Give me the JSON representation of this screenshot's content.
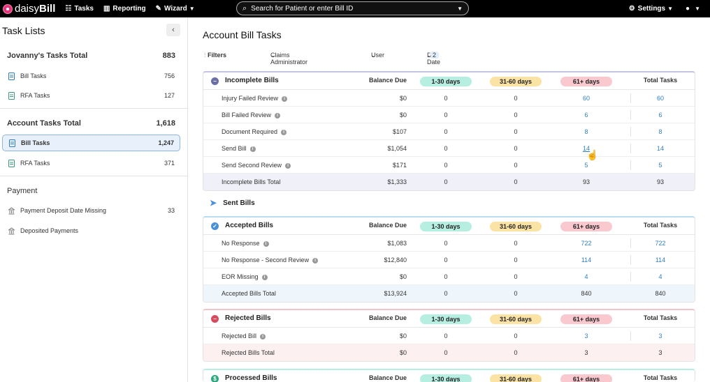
{
  "nav": {
    "brand_pre": "daisy",
    "brand_bold": "Bill",
    "tasks": "Tasks",
    "reporting": "Reporting",
    "wizard": "Wizard",
    "search_placeholder": "Search for Patient or enter Bill ID",
    "settings": "Settings"
  },
  "sidebar": {
    "title": "Task Lists",
    "groups": [
      {
        "title": "Jovanny's Tasks Total",
        "count": "883",
        "items": [
          {
            "label": "Bill Tasks",
            "count": "756"
          },
          {
            "label": "RFA Tasks",
            "count": "127"
          }
        ]
      },
      {
        "title": "Account Tasks Total",
        "count": "1,618",
        "items": [
          {
            "label": "Bill Tasks",
            "count": "1,247"
          },
          {
            "label": "RFA Tasks",
            "count": "371"
          }
        ]
      },
      {
        "title": "Payment",
        "count": "",
        "items": [
          {
            "label": "Payment Deposit Date Missing",
            "count": "33"
          },
          {
            "label": "Deposited Payments",
            "count": ""
          }
        ]
      }
    ]
  },
  "main": {
    "title": "Account Bill Tasks",
    "filters": {
      "label": "Filters",
      "claims_admin": "Claims Administrator",
      "user": "User",
      "due_date": "Due Date",
      "due_date_count": "2"
    },
    "headers": {
      "balance": "Balance Due",
      "d1": "1-30 days",
      "d2": "31-60 days",
      "d3": "61+ days",
      "total": "Total Tasks"
    },
    "sent_bills": "Sent Bills",
    "sections": {
      "incomplete": {
        "title": "Incomplete Bills",
        "rows": [
          [
            "Injury Failed Review",
            "$0",
            "0",
            "0",
            "60",
            "60"
          ],
          [
            "Bill Failed Review",
            "$0",
            "0",
            "0",
            "6",
            "6"
          ],
          [
            "Document Required",
            "$107",
            "0",
            "0",
            "8",
            "8"
          ],
          [
            "Send Bill",
            "$1,054",
            "0",
            "0",
            "14",
            "14"
          ],
          [
            "Send Second Review",
            "$171",
            "0",
            "0",
            "5",
            "5"
          ]
        ],
        "total": [
          "Incomplete Bills Total",
          "$1,333",
          "0",
          "0",
          "93",
          "93"
        ]
      },
      "accepted": {
        "title": "Accepted Bills",
        "rows": [
          [
            "No Response",
            "$1,083",
            "0",
            "0",
            "722",
            "722"
          ],
          [
            "No Response - Second Review",
            "$12,840",
            "0",
            "0",
            "114",
            "114"
          ],
          [
            "EOR Missing",
            "$0",
            "0",
            "0",
            "4",
            "4"
          ]
        ],
        "total": [
          "Accepted Bills Total",
          "$13,924",
          "0",
          "0",
          "840",
          "840"
        ]
      },
      "rejected": {
        "title": "Rejected Bills",
        "rows": [
          [
            "Rejected Bill",
            "$0",
            "0",
            "0",
            "3",
            "3"
          ]
        ],
        "total": [
          "Rejected Bills Total",
          "$0",
          "0",
          "0",
          "3",
          "3"
        ]
      },
      "processed": {
        "title": "Processed Bills"
      }
    },
    "colors": {
      "d1": "#b7eee2",
      "d2": "#fbe3a6",
      "d3": "#f9c9cf",
      "accent": "#2f7ec4"
    }
  }
}
